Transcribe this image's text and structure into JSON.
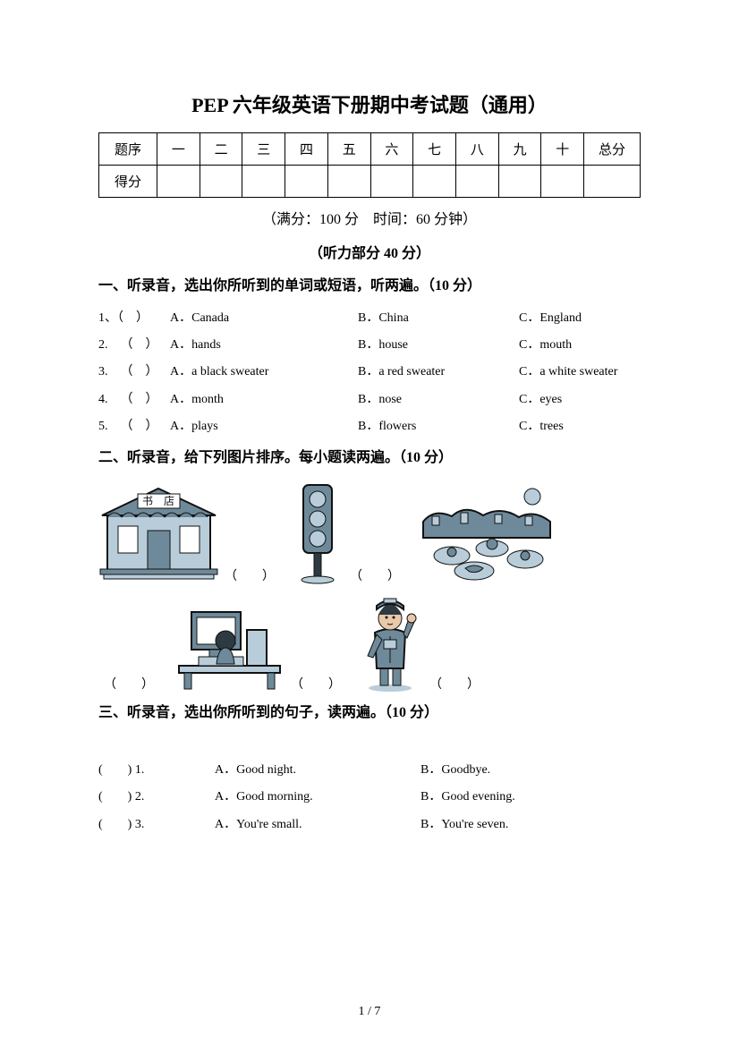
{
  "title": "PEP 六年级英语下册期中考试题（通用）",
  "scoreTable": {
    "row1Label": "题序",
    "cols": [
      "一",
      "二",
      "三",
      "四",
      "五",
      "六",
      "七",
      "八",
      "九",
      "十"
    ],
    "totalLabel": "总分",
    "row2Label": "得分"
  },
  "subinfo": "（满分：100 分 时间：60 分钟）",
  "partTitle": "（听力部分 40 分）",
  "section1": {
    "heading": "一、听录音，选出你所听到的单词或短语，听两遍。（10 分）",
    "rows": [
      {
        "num": "1、（ ）",
        "a": "A．Canada",
        "b": "B．China",
        "c": "C．England"
      },
      {
        "num": "2. （ ）",
        "a": "A．hands",
        "b": "B．house",
        "c": "C．mouth"
      },
      {
        "num": "3. （ ）",
        "a": "A．a black sweater",
        "b": "B．a red sweater",
        "c": "C．a white sweater"
      },
      {
        "num": "4. （ ）",
        "a": "A．month",
        "b": "B．nose",
        "c": "C．eyes"
      },
      {
        "num": "5. （ ）",
        "a": "A．plays",
        "b": "B．flowers",
        "c": "C．trees"
      }
    ]
  },
  "section2": {
    "heading": "二、听录音，给下列图片排序。每小题读两遍。（10 分）",
    "blank": "（  ）",
    "images": {
      "bookstore_label": "书 店",
      "colors": {
        "main": "#6e8a9a",
        "light": "#b8cdd9",
        "dark": "#2d3a42",
        "outline": "#111"
      }
    }
  },
  "section3": {
    "heading": "三、听录音，选出你所听到的句子，读两遍。（10 分）",
    "rows": [
      {
        "num": "(  ) 1.",
        "a": "A．Good night.",
        "b": "B．Goodbye."
      },
      {
        "num": "(  ) 2.",
        "a": "A．Good morning.",
        "b": "B．Good evening."
      },
      {
        "num": "(  ) 3.",
        "a": "A．You're small.",
        "b": "B．You're seven."
      }
    ]
  },
  "footer": "1 / 7"
}
